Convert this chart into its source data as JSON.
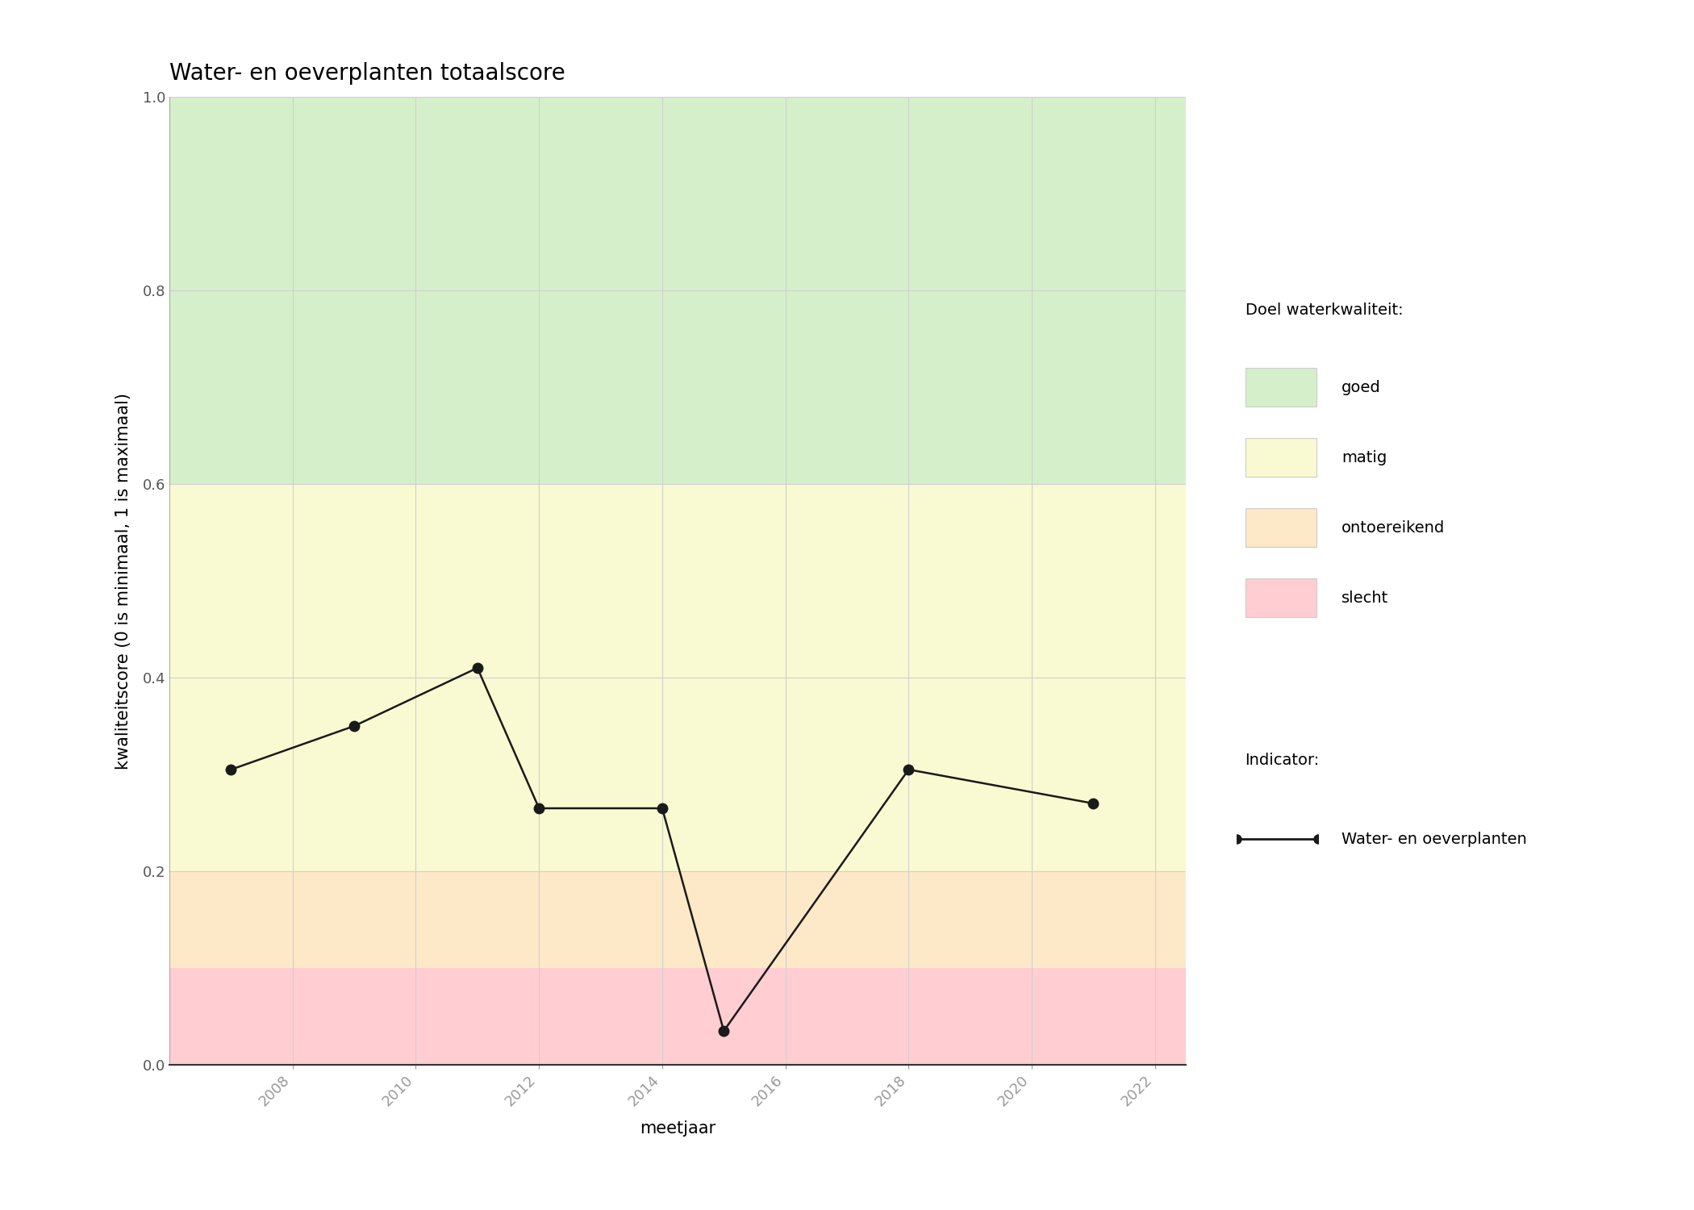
{
  "title": "Water- en oeverplanten totaalscore",
  "xlabel": "meetjaar",
  "ylabel": "kwaliteitscore (0 is minimaal, 1 is maximaal)",
  "x_data": [
    2007,
    2009,
    2011,
    2012,
    2014,
    2015,
    2018,
    2021
  ],
  "y_data": [
    0.305,
    0.35,
    0.41,
    0.265,
    0.265,
    0.035,
    0.305,
    0.27
  ],
  "xlim": [
    2006.0,
    2022.5
  ],
  "ylim": [
    0.0,
    1.0
  ],
  "xticks": [
    2008,
    2010,
    2012,
    2014,
    2016,
    2018,
    2020,
    2022
  ],
  "yticks": [
    0.0,
    0.2,
    0.4,
    0.6,
    0.8,
    1.0
  ],
  "color_goed": "#d5efca",
  "color_matig": "#fafad2",
  "color_ontoereikend": "#fde8c8",
  "color_slecht": "#ffcdd2",
  "threshold_goed_low": 0.6,
  "threshold_matig_low": 0.2,
  "threshold_slecht_high": 0.1,
  "line_color": "#1a1a1a",
  "marker_color": "#1a1a1a",
  "grid_color": "#d0d0d0",
  "legend_title_doel": "Doel waterkwaliteit:",
  "legend_title_indicator": "Indicator:",
  "legend_labels": [
    "goed",
    "matig",
    "ontoereikend",
    "slecht"
  ],
  "legend_colors": [
    "#d5efca",
    "#fafad2",
    "#fde8c8",
    "#ffcdd2"
  ],
  "indicator_label": "Water- en oeverplanten",
  "title_fontsize": 20,
  "axis_label_fontsize": 15,
  "tick_fontsize": 13,
  "legend_fontsize": 14
}
